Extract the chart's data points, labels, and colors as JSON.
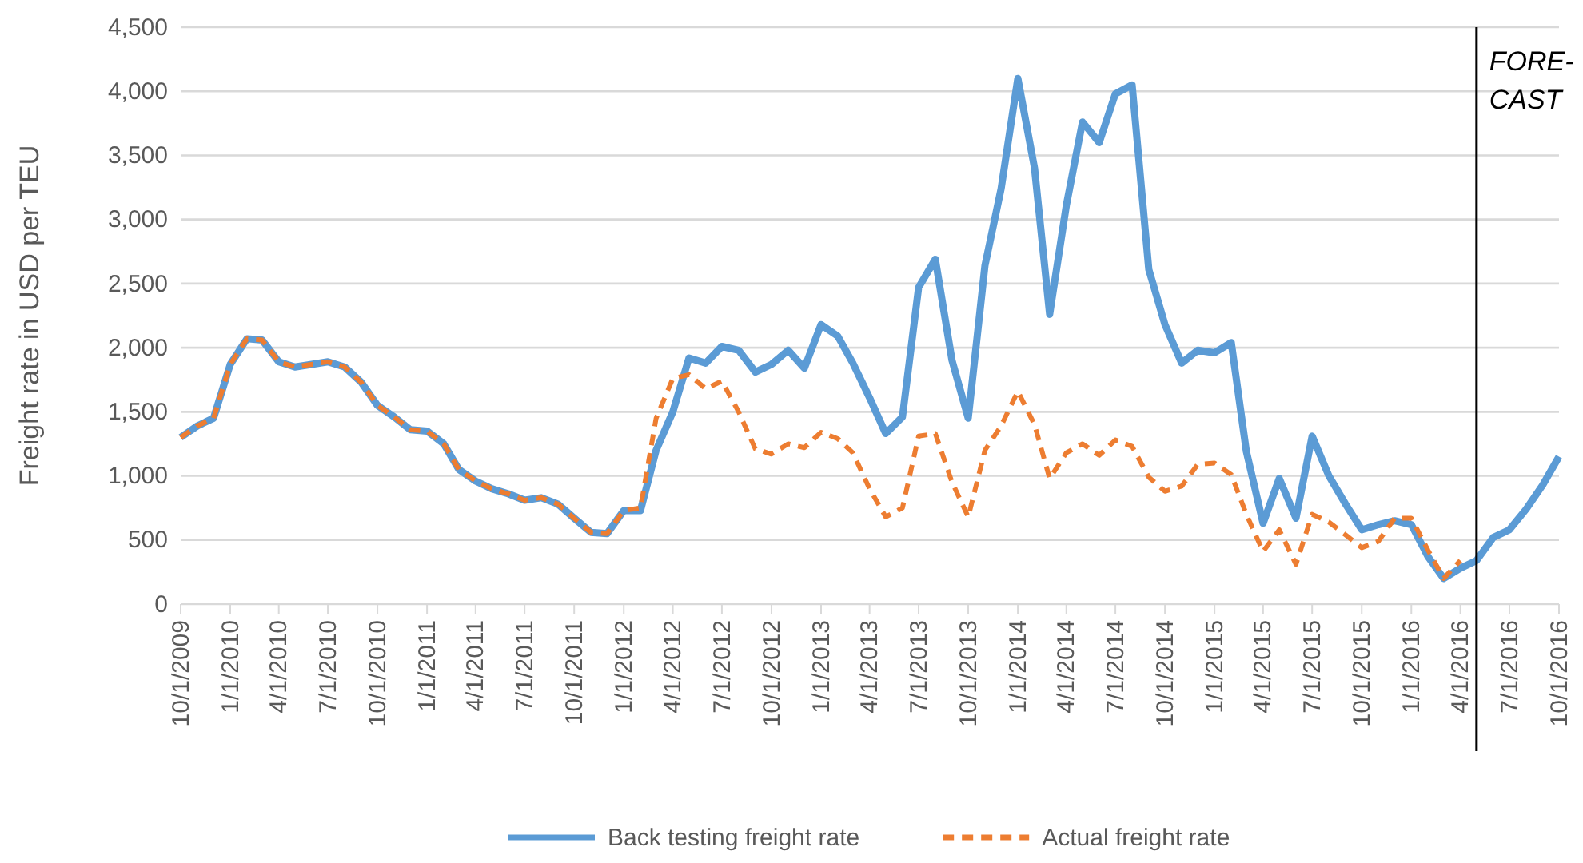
{
  "chart_data": {
    "type": "line",
    "ylabel": "Freight rate in USD per TEU",
    "x": [
      "2009-10",
      "2009-11",
      "2009-12",
      "2010-01",
      "2010-02",
      "2010-03",
      "2010-04",
      "2010-05",
      "2010-06",
      "2010-07",
      "2010-08",
      "2010-09",
      "2010-10",
      "2010-11",
      "2010-12",
      "2011-01",
      "2011-02",
      "2011-03",
      "2011-04",
      "2011-05",
      "2011-06",
      "2011-07",
      "2011-08",
      "2011-09",
      "2011-10",
      "2011-11",
      "2011-12",
      "2012-01",
      "2012-02",
      "2012-03",
      "2012-04",
      "2012-05",
      "2012-06",
      "2012-07",
      "2012-08",
      "2012-09",
      "2012-10",
      "2012-11",
      "2012-12",
      "2013-01",
      "2013-02",
      "2013-03",
      "2013-04",
      "2013-05",
      "2013-06",
      "2013-07",
      "2013-08",
      "2013-09",
      "2013-10",
      "2013-11",
      "2013-12",
      "2014-01",
      "2014-02",
      "2014-03",
      "2014-04",
      "2014-05",
      "2014-06",
      "2014-07",
      "2014-08",
      "2014-09",
      "2014-10",
      "2014-11",
      "2014-12",
      "2015-01",
      "2015-02",
      "2015-03",
      "2015-04",
      "2015-05",
      "2015-06",
      "2015-07",
      "2015-08",
      "2015-09",
      "2015-10",
      "2015-11",
      "2015-12",
      "2016-01",
      "2016-02",
      "2016-03",
      "2016-04",
      "2016-05",
      "2016-06",
      "2016-07",
      "2016-08",
      "2016-09",
      "2016-10"
    ],
    "series": [
      {
        "name": "Back testing freight rate",
        "color": "#5b9bd5",
        "line_style": "solid",
        "values": [
          1300,
          1390,
          1450,
          1870,
          2070,
          2060,
          1890,
          1850,
          1870,
          1890,
          1850,
          1730,
          1550,
          1460,
          1360,
          1350,
          1250,
          1050,
          960,
          900,
          860,
          810,
          830,
          780,
          670,
          560,
          550,
          730,
          730,
          1200,
          1500,
          1920,
          1880,
          2010,
          1980,
          1810,
          1870,
          1980,
          1840,
          2180,
          2090,
          1880,
          1610,
          1330,
          1460,
          2470,
          2690,
          1900,
          1450,
          2640,
          3240,
          4100,
          3400,
          2260,
          3110,
          3760,
          3600,
          3980,
          4050,
          2610,
          2180,
          1880,
          1980,
          1960,
          2040,
          1190,
          630,
          980,
          670,
          1310,
          1000,
          780,
          580,
          620,
          650,
          620,
          370,
          200,
          280,
          340,
          520,
          580,
          740,
          930,
          1150
        ]
      },
      {
        "name": "Actual freight rate",
        "color": "#ed7d31",
        "line_style": "dashed",
        "values": [
          1300,
          1390,
          1450,
          1870,
          2070,
          2060,
          1890,
          1850,
          1870,
          1890,
          1850,
          1730,
          1550,
          1460,
          1360,
          1350,
          1250,
          1050,
          960,
          900,
          860,
          810,
          830,
          780,
          670,
          560,
          550,
          730,
          750,
          1450,
          1760,
          1790,
          1680,
          1740,
          1500,
          1210,
          1170,
          1250,
          1220,
          1340,
          1290,
          1180,
          900,
          680,
          750,
          1310,
          1330,
          950,
          680,
          1200,
          1390,
          1660,
          1400,
          980,
          1180,
          1250,
          1160,
          1280,
          1230,
          990,
          880,
          920,
          1090,
          1100,
          1010,
          700,
          410,
          580,
          310,
          700,
          640,
          540,
          440,
          490,
          670,
          670,
          420,
          200,
          340,
          null,
          null,
          null,
          null,
          null,
          null
        ]
      }
    ],
    "xlim": [
      "2009-10",
      "2016-10"
    ],
    "xticks": [
      {
        "value": "2009-10",
        "label": "10/1/2009"
      },
      {
        "value": "2010-01",
        "label": "1/1/2010"
      },
      {
        "value": "2010-04",
        "label": "4/1/2010"
      },
      {
        "value": "2010-07",
        "label": "7/1/2010"
      },
      {
        "value": "2010-10",
        "label": "10/1/2010"
      },
      {
        "value": "2011-01",
        "label": "1/1/2011"
      },
      {
        "value": "2011-04",
        "label": "4/1/2011"
      },
      {
        "value": "2011-07",
        "label": "7/1/2011"
      },
      {
        "value": "2011-10",
        "label": "10/1/2011"
      },
      {
        "value": "2012-01",
        "label": "1/1/2012"
      },
      {
        "value": "2012-04",
        "label": "4/1/2012"
      },
      {
        "value": "2012-07",
        "label": "7/1/2012"
      },
      {
        "value": "2012-10",
        "label": "10/1/2012"
      },
      {
        "value": "2013-01",
        "label": "1/1/2013"
      },
      {
        "value": "2013-04",
        "label": "4/1/2013"
      },
      {
        "value": "2013-07",
        "label": "7/1/2013"
      },
      {
        "value": "2013-10",
        "label": "10/1/2013"
      },
      {
        "value": "2014-01",
        "label": "1/1/2014"
      },
      {
        "value": "2014-04",
        "label": "4/1/2014"
      },
      {
        "value": "2014-07",
        "label": "7/1/2014"
      },
      {
        "value": "2014-10",
        "label": "10/1/2014"
      },
      {
        "value": "2015-01",
        "label": "1/1/2015"
      },
      {
        "value": "2015-04",
        "label": "4/1/2015"
      },
      {
        "value": "2015-07",
        "label": "7/1/2015"
      },
      {
        "value": "2015-10",
        "label": "10/1/2015"
      },
      {
        "value": "2016-01",
        "label": "1/1/2016"
      },
      {
        "value": "2016-04",
        "label": "4/1/2016"
      },
      {
        "value": "2016-07",
        "label": "7/1/2016"
      },
      {
        "value": "2016-10",
        "label": "10/1/2016"
      }
    ],
    "ylim": [
      0,
      4500
    ],
    "yticks": [
      {
        "value": 0,
        "label": "0"
      },
      {
        "value": 500,
        "label": "500"
      },
      {
        "value": 1000,
        "label": "1,000"
      },
      {
        "value": 1500,
        "label": "1,500"
      },
      {
        "value": 2000,
        "label": "2,000"
      },
      {
        "value": 2500,
        "label": "2,500"
      },
      {
        "value": 3000,
        "label": "3,000"
      },
      {
        "value": 3500,
        "label": "3,500"
      },
      {
        "value": 4000,
        "label": "4,000"
      },
      {
        "value": 4500,
        "label": "4,500"
      }
    ],
    "ref_lines": [
      {
        "axis": "x",
        "value": "2016-05",
        "label": "FORE-\nCAST",
        "color": "#000000",
        "line_style": "solid"
      }
    ],
    "grid": "y",
    "legend": "bottom",
    "marker": "none"
  }
}
